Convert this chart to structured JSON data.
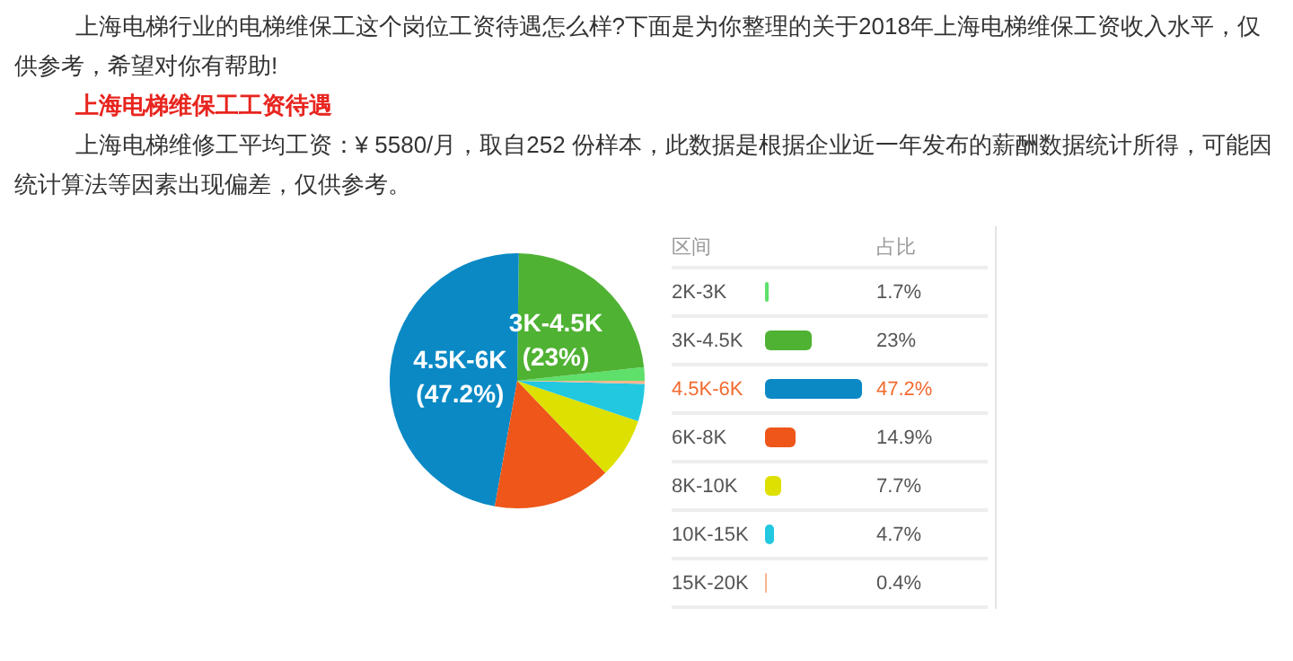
{
  "chart_data": {
    "type": "pie",
    "title": "上海电梯维保工工资待遇",
    "annotations": [
      "上海电梯行业的电梯维保工这个岗位工资待遇怎么样?下面是为你整理的关于2018年上海电梯维保工资收入水平，仅供参考，希望对你有帮助!",
      "上海电梯维修工平均工资：¥ 5580/月，取自252 份样本，此数据是根据企业近一年发布的薪酬数据统计所得，可能因统计算法等因素出现偏差，仅供参考。",
      "占比",
      {
        "text": "(47.2%)",
        "x": "4.5K-6K"
      },
      {
        "text": "(23%)",
        "x": "3K-4.5K"
      }
    ],
    "data_labels": true,
    "legend_title": "区间",
    "categories": [
      "2K-3K",
      "3K-4.5K",
      "4.5K-6K",
      "6K-8K",
      "8K-10K",
      "10K-15K",
      "15K-20K"
    ],
    "values": [
      1.7,
      23,
      47.2,
      14.9,
      7.7,
      4.7,
      0.4
    ],
    "colors": [
      "#5ee06a",
      "#4fb233",
      "#0a89c5",
      "#ee561a",
      "#dde000",
      "#22c8e0",
      "#f7b58f"
    ],
    "value_labels": [
      "1.7%",
      "23%",
      "47.2%",
      "14.9%",
      "7.7%",
      "4.7%",
      "0.4%"
    ],
    "legend": "right"
  }
}
